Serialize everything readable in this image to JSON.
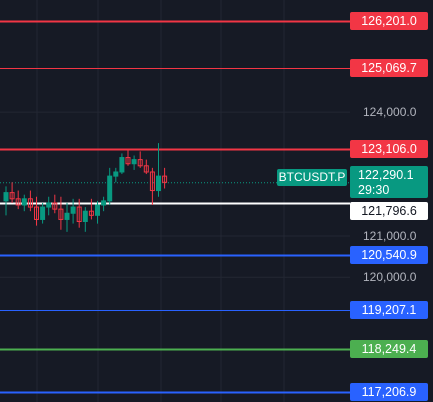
{
  "axis_ticks": [
    {
      "value": 124000,
      "label": "124,000.0"
    },
    {
      "value": 121000,
      "label": "121,000.0"
    },
    {
      "value": 120000,
      "label": "120,000.0"
    }
  ],
  "lines": [
    {
      "price": 126201.0,
      "label": "126,201.0",
      "color": "#f23645",
      "thickness": 2
    },
    {
      "price": 125069.7,
      "label": "125,069.7",
      "color": "#f23645",
      "thickness": 1
    },
    {
      "price": 123106.0,
      "label": "123,106.0",
      "color": "#f23645",
      "thickness": 2
    },
    {
      "price": 120540.9,
      "label": "120,540.9",
      "color": "#2962ff",
      "thickness": 2
    },
    {
      "price": 119207.1,
      "label": "119,207.1",
      "color": "#2962ff",
      "thickness": 1
    },
    {
      "price": 118249.4,
      "label": "118,249.4",
      "color": "#4caf50",
      "thickness": 2
    },
    {
      "price": 117206.9,
      "label": "117,206.9",
      "color": "#2962ff",
      "thickness": 2
    }
  ],
  "white_line": {
    "price": 121796.6,
    "label": "121,796.6",
    "color": "#ffffff"
  },
  "last_price": {
    "price": 122290.1,
    "label": "122,290.1",
    "countdown": "29:30",
    "color": "#089981"
  },
  "symbol": "BTCUSDT.P",
  "colors": {
    "background": "#161a25",
    "grid": "#232733",
    "up": "#089981",
    "down": "#f23645"
  },
  "candles": [
    {
      "o": 121850,
      "h": 122200,
      "l": 121500,
      "c": 122050
    },
    {
      "o": 122050,
      "h": 122300,
      "l": 121800,
      "c": 121900
    },
    {
      "o": 121900,
      "h": 122100,
      "l": 121650,
      "c": 121750
    },
    {
      "o": 121750,
      "h": 122000,
      "l": 121600,
      "c": 121900
    },
    {
      "o": 121900,
      "h": 122100,
      "l": 121600,
      "c": 121700
    },
    {
      "o": 121700,
      "h": 121950,
      "l": 121250,
      "c": 121400
    },
    {
      "o": 121400,
      "h": 121800,
      "l": 121300,
      "c": 121700
    },
    {
      "o": 121700,
      "h": 121950,
      "l": 121500,
      "c": 121800
    },
    {
      "o": 121800,
      "h": 122000,
      "l": 121550,
      "c": 121650
    },
    {
      "o": 121650,
      "h": 121950,
      "l": 121150,
      "c": 121400
    },
    {
      "o": 121400,
      "h": 121800,
      "l": 121100,
      "c": 121550
    },
    {
      "o": 121550,
      "h": 121900,
      "l": 121300,
      "c": 121700
    },
    {
      "o": 121700,
      "h": 121900,
      "l": 121200,
      "c": 121350
    },
    {
      "o": 121350,
      "h": 121700,
      "l": 121100,
      "c": 121600
    },
    {
      "o": 121600,
      "h": 121900,
      "l": 121400,
      "c": 121500
    },
    {
      "o": 121500,
      "h": 121850,
      "l": 121300,
      "c": 121750
    },
    {
      "o": 121750,
      "h": 121950,
      "l": 121600,
      "c": 121850
    },
    {
      "o": 121850,
      "h": 122650,
      "l": 121750,
      "c": 122450
    },
    {
      "o": 122450,
      "h": 122650,
      "l": 122300,
      "c": 122550
    },
    {
      "o": 122550,
      "h": 123000,
      "l": 122500,
      "c": 122900
    },
    {
      "o": 122900,
      "h": 123100,
      "l": 122700,
      "c": 122750
    },
    {
      "o": 122750,
      "h": 122950,
      "l": 122600,
      "c": 122850
    },
    {
      "o": 122850,
      "h": 123050,
      "l": 122650,
      "c": 122700
    },
    {
      "o": 122700,
      "h": 122850,
      "l": 122500,
      "c": 122550
    },
    {
      "o": 122550,
      "h": 122650,
      "l": 121750,
      "c": 122100
    },
    {
      "o": 122100,
      "h": 123250,
      "l": 121950,
      "c": 122450
    },
    {
      "o": 122450,
      "h": 122650,
      "l": 122150,
      "c": 122300
    }
  ]
}
